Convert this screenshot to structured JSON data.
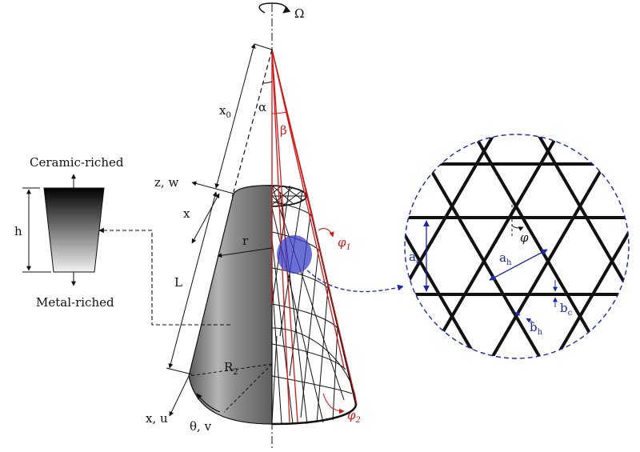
{
  "labels": {
    "omega": "Ω",
    "alpha": "α",
    "beta": "β",
    "x0": "x",
    "x0_sub": "0",
    "x": "x",
    "z_w": "z, w",
    "r": "r",
    "L": "L",
    "R2": "R",
    "R2_sub": "2",
    "x_u": "x, u",
    "theta_v": "θ, v",
    "phi1": "φ",
    "phi1_sub": "1",
    "phi2": "φ",
    "phi2_sub": "2",
    "phi": "φ",
    "ceramic": "Ceramic-riched",
    "metal": "Metal-riched",
    "h": "h",
    "ac": "a",
    "ac_sub": "c",
    "ah": "a",
    "ah_sub": "h",
    "bc": "b",
    "bc_sub": "c",
    "bh": "b",
    "bh_sub": "h"
  },
  "colors": {
    "accent_red": "#d01818",
    "accent_blue": "#1a2aa8",
    "lattice": "#111111",
    "shell_gray": "#7a7a7a"
  }
}
